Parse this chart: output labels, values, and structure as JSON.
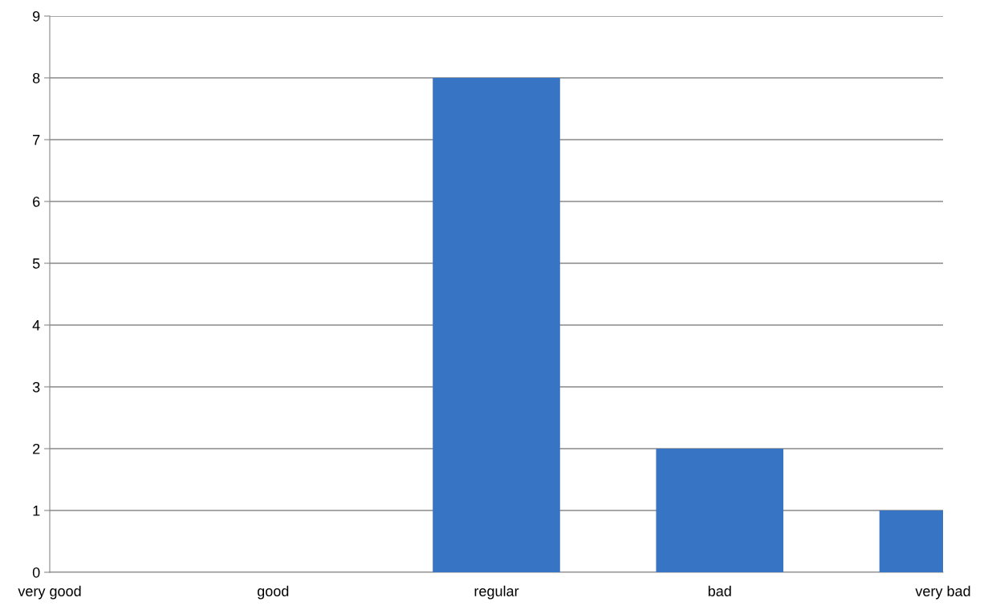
{
  "chart_data": {
    "type": "bar",
    "categories": [
      "very good",
      "good",
      "regular",
      "bad",
      "very bad"
    ],
    "values": [
      0,
      0,
      8,
      2,
      1
    ],
    "color": "#3874c4",
    "ylim": [
      0,
      9
    ],
    "yticks": [
      0,
      1,
      2,
      3,
      4,
      5,
      6,
      7,
      8,
      9
    ],
    "grid": "y"
  }
}
